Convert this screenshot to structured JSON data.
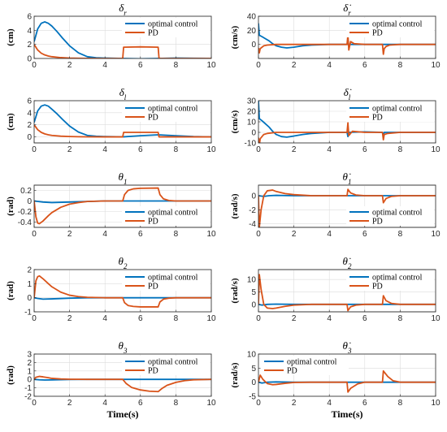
{
  "colors": {
    "optimal": "#0072BD",
    "pd": "#D95319"
  },
  "chart_data": [
    {
      "type": "line",
      "title": "δ_r",
      "ylabel": "(cm)",
      "xlabel": "",
      "xlim": [
        0,
        10
      ],
      "ylim": [
        0,
        6
      ],
      "xticks": [
        0,
        2,
        4,
        6,
        8,
        10
      ],
      "yticks": [
        0,
        2,
        4,
        6
      ],
      "grid": true,
      "legend": "top-right",
      "series": [
        {
          "name": "optimal control",
          "x": [
            0,
            0.2,
            0.4,
            0.6,
            0.8,
            1,
            1.3,
            1.6,
            2,
            2.5,
            3,
            3.5,
            4,
            5,
            6,
            7,
            8,
            9,
            10
          ],
          "values": [
            2.4,
            4.2,
            5.0,
            5.2,
            5.0,
            4.6,
            3.8,
            2.9,
            1.8,
            0.8,
            0.25,
            0.1,
            0.05,
            0,
            -0.05,
            0,
            0.05,
            0.02,
            0
          ]
        },
        {
          "name": "PD",
          "x": [
            0,
            0.2,
            0.4,
            0.6,
            0.8,
            1,
            1.5,
            2,
            2.5,
            3,
            4,
            5,
            5.05,
            6,
            7,
            7.05,
            8,
            9,
            10
          ],
          "values": [
            2.0,
            1.2,
            0.75,
            0.5,
            0.35,
            0.25,
            0.12,
            0.06,
            0.03,
            0.01,
            0,
            0,
            1.6,
            1.65,
            1.6,
            0,
            0,
            0,
            0
          ]
        }
      ]
    },
    {
      "type": "line",
      "title": "δ̇_r",
      "ylabel": "(cm/s)",
      "xlabel": "",
      "xlim": [
        0,
        10
      ],
      "ylim": [
        -20,
        40
      ],
      "xticks": [
        0,
        2,
        4,
        6,
        8,
        10
      ],
      "yticks": [
        0,
        20,
        40
      ],
      "grid": true,
      "legend": "top-right",
      "series": [
        {
          "name": "optimal control",
          "x": [
            0,
            0.05,
            0.2,
            0.4,
            0.6,
            0.8,
            1,
            1.3,
            1.6,
            2,
            2.5,
            3,
            4,
            5,
            10
          ],
          "values": [
            30,
            13,
            11,
            8,
            5,
            1,
            -2,
            -4,
            -5,
            -4,
            -2,
            -1,
            0,
            0,
            0
          ]
        },
        {
          "name": "PD",
          "x": [
            0,
            0.05,
            0.1,
            0.3,
            0.5,
            1,
            2,
            5,
            5.05,
            5.1,
            5.2,
            5.4,
            6,
            7,
            7.05,
            7.1,
            7.2,
            7.4,
            8,
            10
          ],
          "values": [
            -5,
            -12,
            -6,
            -2,
            -1,
            0,
            0,
            0,
            14,
            -8,
            4,
            1,
            0,
            0,
            -14,
            -6,
            -3,
            -1,
            0,
            0
          ]
        }
      ]
    },
    {
      "type": "line",
      "title": "δ_l",
      "ylabel": "(cm)",
      "xlabel": "",
      "xlim": [
        0,
        10
      ],
      "ylim": [
        -1,
        6
      ],
      "xticks": [
        0,
        2,
        4,
        6,
        8,
        10
      ],
      "yticks": [
        0,
        2,
        4,
        6
      ],
      "grid": true,
      "legend": "top-right",
      "series": [
        {
          "name": "optimal control",
          "x": [
            0,
            0.2,
            0.4,
            0.6,
            0.8,
            1,
            1.3,
            1.6,
            2,
            2.5,
            3,
            3.5,
            4,
            5,
            6,
            7,
            8,
            9,
            10
          ],
          "values": [
            2.4,
            4.3,
            5.1,
            5.3,
            5.1,
            4.6,
            3.8,
            2.9,
            1.8,
            0.8,
            0.25,
            0.1,
            0.05,
            0,
            0.2,
            0.35,
            0.2,
            0.05,
            0
          ]
        },
        {
          "name": "PD",
          "x": [
            0,
            0.2,
            0.4,
            0.6,
            0.8,
            1,
            1.5,
            2,
            2.5,
            3,
            4,
            5,
            5.05,
            6,
            7,
            7.05,
            8,
            9,
            10
          ],
          "values": [
            2.0,
            1.2,
            0.75,
            0.5,
            0.35,
            0.25,
            0.12,
            0.06,
            0.03,
            0.01,
            0,
            0,
            0.75,
            0.75,
            0.75,
            0,
            0,
            0,
            0
          ]
        }
      ]
    },
    {
      "type": "line",
      "title": "δ̇_l",
      "ylabel": "(cm/s)",
      "xlabel": "",
      "xlim": [
        0,
        10
      ],
      "ylim": [
        -10,
        30
      ],
      "xticks": [
        0,
        2,
        4,
        6,
        8,
        10
      ],
      "yticks": [
        -10,
        0,
        10,
        20,
        30
      ],
      "grid": true,
      "legend": "top-right",
      "series": [
        {
          "name": "optimal control",
          "x": [
            0,
            0.05,
            0.2,
            0.4,
            0.6,
            0.8,
            1,
            1.3,
            1.6,
            2,
            2.5,
            3,
            4,
            5,
            5.05,
            5.1,
            6,
            7,
            7.05,
            7.1,
            10
          ],
          "values": [
            30,
            13,
            11,
            8,
            5,
            1,
            -2,
            -4,
            -4.5,
            -3.5,
            -2,
            -1,
            0,
            0,
            -4,
            0,
            0.5,
            0,
            -3,
            0,
            0
          ]
        },
        {
          "name": "PD",
          "x": [
            0,
            0.05,
            0.1,
            0.3,
            0.5,
            1,
            2,
            5,
            5.05,
            5.1,
            5.3,
            6,
            7,
            7.05,
            7.1,
            7.3,
            8,
            10
          ],
          "values": [
            -5,
            -12,
            -6,
            -2,
            -1,
            0,
            0,
            0,
            9,
            -3,
            1,
            0,
            0,
            -7,
            -2,
            -1,
            0,
            0
          ]
        }
      ]
    },
    {
      "type": "line",
      "title": "θ_1",
      "ylabel": "(rad)",
      "xlabel": "",
      "xlim": [
        0,
        10
      ],
      "ylim": [
        -0.5,
        0.3
      ],
      "xticks": [
        0,
        2,
        4,
        6,
        8,
        10
      ],
      "yticks": [
        -0.4,
        -0.2,
        0,
        0.2
      ],
      "grid": true,
      "legend": "bottom-right",
      "series": [
        {
          "name": "optimal control",
          "x": [
            0,
            0.5,
            1,
            2,
            3,
            4,
            5,
            6,
            7,
            8,
            10
          ],
          "values": [
            0,
            -0.02,
            -0.03,
            -0.02,
            -0.01,
            0,
            0,
            0,
            0,
            0,
            0
          ]
        },
        {
          "name": "PD",
          "x": [
            0,
            0.1,
            0.2,
            0.3,
            0.5,
            0.8,
            1,
            1.5,
            2,
            2.5,
            3,
            4,
            5,
            5.1,
            5.3,
            5.6,
            6,
            7,
            7.1,
            7.3,
            7.6,
            8,
            9,
            10
          ],
          "values": [
            0,
            -0.3,
            -0.42,
            -0.43,
            -0.38,
            -0.28,
            -0.22,
            -0.12,
            -0.06,
            -0.03,
            -0.01,
            0,
            0,
            0.12,
            0.2,
            0.23,
            0.24,
            0.245,
            0.12,
            0.04,
            0.01,
            0,
            0,
            0
          ]
        }
      ]
    },
    {
      "type": "line",
      "title": "θ̇_1",
      "ylabel": "(rad/s)",
      "xlabel": "",
      "xlim": [
        0,
        10
      ],
      "ylim": [
        -4.5,
        1.5
      ],
      "xticks": [
        0,
        2,
        4,
        6,
        8,
        10
      ],
      "yticks": [
        -4,
        -2,
        0
      ],
      "grid": true,
      "legend": "bottom-right",
      "series": [
        {
          "name": "optimal control",
          "x": [
            0,
            0.3,
            0.6,
            1,
            2,
            10
          ],
          "values": [
            0,
            -0.1,
            0,
            0.05,
            0,
            0
          ]
        },
        {
          "name": "PD",
          "x": [
            0,
            0.05,
            0.15,
            0.3,
            0.5,
            0.8,
            1,
            1.5,
            2,
            3,
            5,
            5.05,
            5.2,
            5.5,
            6,
            7,
            7.05,
            7.2,
            7.5,
            8,
            10
          ],
          "values": [
            0,
            -4.5,
            -2,
            0,
            0.7,
            0.8,
            0.6,
            0.3,
            0.15,
            0,
            0,
            0.9,
            0.4,
            0.1,
            0,
            0,
            -1.0,
            -0.4,
            -0.1,
            0,
            0
          ]
        }
      ]
    },
    {
      "type": "line",
      "title": "θ_2",
      "ylabel": "(rad)",
      "xlabel": "",
      "xlim": [
        0,
        10
      ],
      "ylim": [
        -1,
        2
      ],
      "xticks": [
        0,
        2,
        4,
        6,
        8,
        10
      ],
      "yticks": [
        -1,
        0,
        1,
        2
      ],
      "grid": true,
      "legend": "top-right",
      "series": [
        {
          "name": "optimal control",
          "x": [
            0,
            0.2,
            0.5,
            1,
            2,
            3,
            10
          ],
          "values": [
            0,
            -0.05,
            -0.1,
            -0.08,
            -0.03,
            0,
            0
          ]
        },
        {
          "name": "PD",
          "x": [
            0,
            0.1,
            0.2,
            0.3,
            0.5,
            0.8,
            1,
            1.5,
            2,
            2.5,
            3,
            4,
            5,
            5.1,
            5.3,
            5.6,
            6,
            7,
            7.1,
            7.3,
            7.6,
            8,
            10
          ],
          "values": [
            0,
            1.2,
            1.5,
            1.55,
            1.35,
            1.0,
            0.78,
            0.4,
            0.18,
            0.08,
            0.03,
            0,
            0,
            -0.35,
            -0.55,
            -0.62,
            -0.65,
            -0.65,
            -0.3,
            -0.1,
            -0.03,
            0,
            0
          ]
        }
      ]
    },
    {
      "type": "line",
      "title": "θ̇_2",
      "ylabel": "(rad/s)",
      "xlabel": "",
      "xlim": [
        0,
        10
      ],
      "ylim": [
        -3,
        14
      ],
      "xticks": [
        0,
        2,
        4,
        6,
        8,
        10
      ],
      "yticks": [
        0,
        5,
        10
      ],
      "grid": true,
      "legend": "top-right",
      "series": [
        {
          "name": "optimal control",
          "x": [
            0,
            0.2,
            0.5,
            1,
            2,
            10
          ],
          "values": [
            0,
            -0.3,
            0,
            0.1,
            0,
            0
          ]
        },
        {
          "name": "PD",
          "x": [
            0,
            0.05,
            0.15,
            0.3,
            0.5,
            0.8,
            1,
            1.5,
            2,
            3,
            5,
            5.05,
            5.2,
            5.5,
            6,
            7,
            7.05,
            7.2,
            7.5,
            8,
            10
          ],
          "values": [
            0,
            12,
            6,
            0,
            -1.5,
            -1.7,
            -1.5,
            -0.8,
            -0.3,
            0,
            0,
            -2.5,
            -1,
            -0.3,
            0,
            0,
            3.5,
            1.5,
            0.4,
            0,
            0
          ]
        }
      ]
    },
    {
      "type": "line",
      "title": "θ_3",
      "ylabel": "(rad)",
      "xlabel": "Time(s)",
      "xlim": [
        0,
        10
      ],
      "ylim": [
        -2,
        3
      ],
      "xticks": [
        0,
        2,
        4,
        6,
        8,
        10
      ],
      "yticks": [
        -2,
        -1,
        0,
        1,
        2,
        3
      ],
      "grid": true,
      "legend": "top-right",
      "series": [
        {
          "name": "optimal control",
          "x": [
            0,
            0.3,
            0.6,
            1,
            2,
            3,
            10
          ],
          "values": [
            0,
            -0.05,
            -0.08,
            -0.06,
            -0.02,
            0,
            0
          ]
        },
        {
          "name": "PD",
          "x": [
            0,
            0.1,
            0.3,
            0.5,
            0.8,
            1,
            1.5,
            2,
            3,
            4,
            5,
            5.2,
            5.5,
            6,
            6.5,
            7,
            7.2,
            7.5,
            8,
            8.5,
            9,
            10
          ],
          "values": [
            0,
            0.25,
            0.35,
            0.3,
            0.2,
            0.12,
            0.05,
            0.02,
            0,
            0,
            0,
            -0.5,
            -0.95,
            -1.25,
            -1.4,
            -1.45,
            -1.1,
            -0.7,
            -0.35,
            -0.15,
            -0.05,
            0
          ]
        }
      ]
    },
    {
      "type": "line",
      "title": "θ̇_3",
      "ylabel": "(rad/s)",
      "xlabel": "Time(s)",
      "xlim": [
        0,
        10
      ],
      "ylim": [
        -5,
        10
      ],
      "xticks": [
        0,
        2,
        4,
        6,
        8,
        10
      ],
      "yticks": [
        -5,
        0,
        5,
        10
      ],
      "grid": true,
      "legend": "top-left",
      "series": [
        {
          "name": "optimal control",
          "x": [
            0,
            0.2,
            0.5,
            1,
            2,
            10
          ],
          "values": [
            0,
            -0.3,
            0,
            0.1,
            0,
            0
          ]
        },
        {
          "name": "PD",
          "x": [
            0,
            0.1,
            0.25,
            0.5,
            0.8,
            1,
            1.5,
            2,
            3,
            5,
            5.05,
            5.2,
            5.6,
            6,
            7,
            7.05,
            7.3,
            7.6,
            8,
            10
          ],
          "values": [
            0,
            2.5,
            1.0,
            -0.5,
            -0.9,
            -0.8,
            -0.4,
            -0.1,
            0,
            0,
            -3.5,
            -2.2,
            -0.6,
            0,
            0,
            4.0,
            2.0,
            0.5,
            0,
            0
          ]
        }
      ]
    }
  ]
}
